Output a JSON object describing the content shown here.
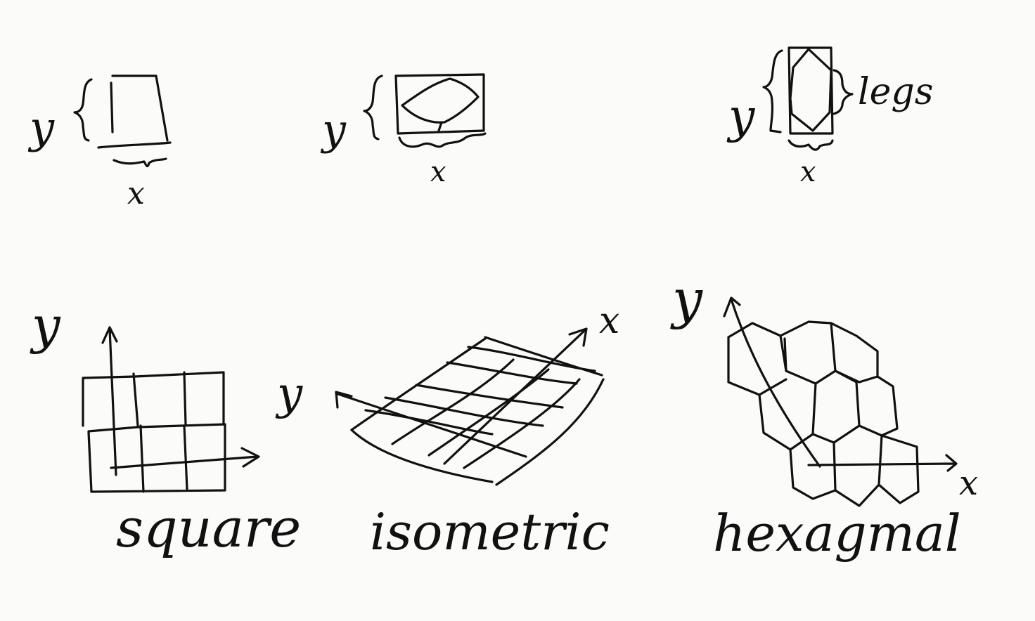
{
  "tiles": {
    "square_tile": {
      "y_label": "y",
      "x_label": "x"
    },
    "iso_tile": {
      "y_label": "y",
      "x_label": "x"
    },
    "hex_tile": {
      "y_label": "y",
      "x_label": "x",
      "legs_label": "legs"
    }
  },
  "grids": {
    "square": {
      "caption": "square",
      "y_label": "y"
    },
    "isometric": {
      "caption": "isometric",
      "y_label": "y",
      "x_label": "x"
    },
    "hexagonal": {
      "caption": "hexagmal",
      "y_label": "y",
      "x_label": "x"
    }
  },
  "colors": {
    "ink": "#111111",
    "paper": "#fbfbfa"
  }
}
